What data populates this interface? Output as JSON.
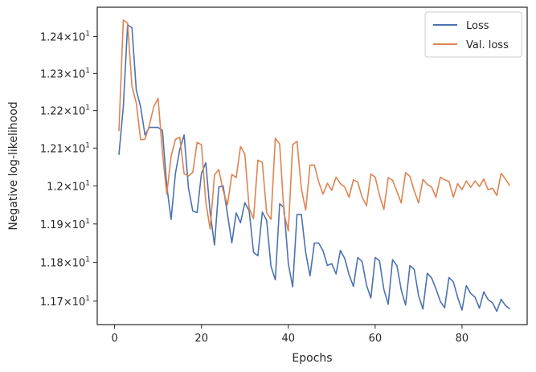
{
  "chart_data": {
    "type": "line",
    "xlabel": "Epochs",
    "ylabel": "Negative log-likelihood",
    "xlim": [
      -4,
      95
    ],
    "ylim": [
      11.64,
      12.48
    ],
    "yscale": "log",
    "grid": false,
    "legend_position": "top-right",
    "x_ticks": [
      {
        "value": 0,
        "label": "0"
      },
      {
        "value": 20,
        "label": "20"
      },
      {
        "value": 40,
        "label": "40"
      },
      {
        "value": 60,
        "label": "60"
      },
      {
        "value": 80,
        "label": "80"
      }
    ],
    "y_ticks": [
      {
        "value": 11.7,
        "mantissa": "1.17",
        "base": "10",
        "exp": "1"
      },
      {
        "value": 11.8,
        "mantissa": "1.18",
        "base": "10",
        "exp": "1"
      },
      {
        "value": 11.9,
        "mantissa": "1.19",
        "base": "10",
        "exp": "1"
      },
      {
        "value": 12.0,
        "mantissa": "1.2",
        "base": "10",
        "exp": "1"
      },
      {
        "value": 12.1,
        "mantissa": "1.21",
        "base": "10",
        "exp": "1"
      },
      {
        "value": 12.2,
        "mantissa": "1.22",
        "base": "10",
        "exp": "1"
      },
      {
        "value": 12.3,
        "mantissa": "1.23",
        "base": "10",
        "exp": "1"
      },
      {
        "value": 12.4,
        "mantissa": "1.24",
        "base": "10",
        "exp": "1"
      }
    ],
    "x": [
      1,
      2,
      3,
      4,
      5,
      6,
      7,
      8,
      9,
      10,
      11,
      12,
      13,
      14,
      15,
      16,
      17,
      18,
      19,
      20,
      21,
      22,
      23,
      24,
      25,
      26,
      27,
      28,
      29,
      30,
      31,
      32,
      33,
      34,
      35,
      36,
      37,
      38,
      39,
      40,
      41,
      42,
      43,
      44,
      45,
      46,
      47,
      48,
      49,
      50,
      51,
      52,
      53,
      54,
      55,
      56,
      57,
      58,
      59,
      60,
      61,
      62,
      63,
      64,
      65,
      66,
      67,
      68,
      69,
      70,
      71,
      72,
      73,
      74,
      75,
      76,
      77,
      78,
      79,
      80,
      81,
      82,
      83,
      84,
      85,
      86,
      87,
      88,
      89,
      90,
      91
    ],
    "series": [
      {
        "name": "Loss",
        "color": "#4c72b0",
        "values": [
          12.082,
          12.209,
          12.432,
          12.424,
          12.255,
          12.21,
          12.135,
          12.155,
          12.155,
          12.155,
          12.147,
          12.0,
          11.912,
          12.033,
          12.096,
          12.135,
          11.995,
          11.934,
          11.93,
          12.033,
          12.061,
          11.93,
          11.845,
          11.997,
          12.0,
          11.925,
          11.851,
          11.929,
          11.903,
          11.956,
          11.934,
          11.826,
          11.817,
          11.931,
          11.91,
          11.79,
          11.755,
          11.953,
          11.943,
          11.797,
          11.737,
          11.925,
          11.925,
          11.826,
          11.765,
          11.85,
          11.85,
          11.83,
          11.792,
          11.797,
          11.77,
          11.831,
          11.81,
          11.768,
          11.738,
          11.813,
          11.802,
          11.741,
          11.708,
          11.813,
          11.804,
          11.73,
          11.692,
          11.807,
          11.792,
          11.729,
          11.69,
          11.792,
          11.782,
          11.714,
          11.68,
          11.772,
          11.76,
          11.732,
          11.7,
          11.683,
          11.761,
          11.75,
          11.71,
          11.677,
          11.74,
          11.72,
          11.71,
          11.682,
          11.724,
          11.704,
          11.696,
          11.674,
          11.705,
          11.689,
          11.68
        ]
      },
      {
        "name": "Val. loss",
        "color": "#dd8452",
        "values": [
          12.145,
          12.445,
          12.437,
          12.265,
          12.22,
          12.122,
          12.124,
          12.16,
          12.21,
          12.233,
          12.09,
          11.978,
          12.078,
          12.123,
          12.129,
          12.032,
          12.026,
          12.036,
          12.115,
          12.109,
          11.957,
          11.887,
          12.029,
          12.043,
          11.987,
          11.95,
          12.03,
          12.022,
          12.104,
          12.084,
          11.94,
          11.914,
          12.068,
          12.062,
          11.93,
          11.912,
          12.126,
          12.111,
          11.928,
          11.882,
          12.109,
          12.118,
          11.993,
          11.936,
          12.055,
          12.055,
          12.01,
          11.978,
          12.007,
          11.988,
          12.023,
          12.006,
          11.997,
          11.97,
          12.016,
          12.01,
          11.97,
          11.948,
          12.031,
          12.023,
          11.975,
          11.938,
          12.022,
          12.015,
          11.985,
          11.955,
          12.035,
          12.025,
          11.987,
          11.955,
          12.017,
          12.004,
          11.997,
          11.97,
          12.023,
          12.016,
          12.012,
          11.97,
          12.006,
          11.99,
          12.013,
          11.996,
          12.013,
          11.998,
          12.018,
          11.99,
          11.994,
          11.975,
          12.033,
          12.018,
          12.001
        ]
      }
    ]
  }
}
